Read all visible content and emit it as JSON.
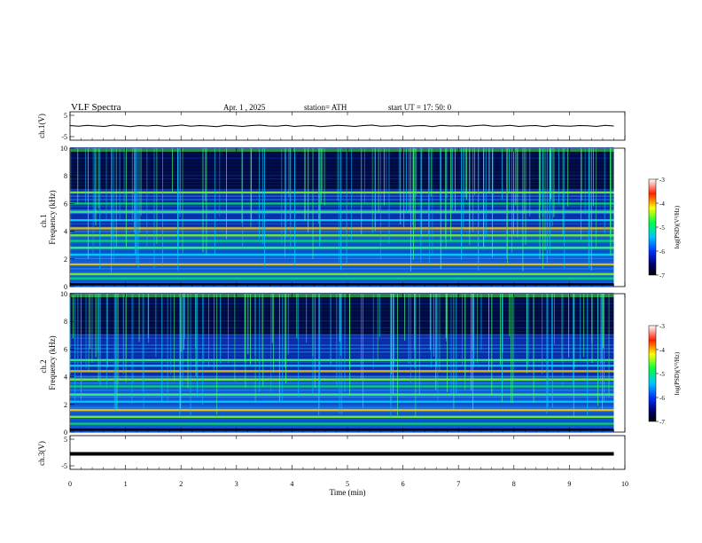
{
  "header": {
    "title": "VLF  Spectra",
    "date": "Apr. 1  , 2025",
    "station": "station= ATH",
    "start": "start  UT  =    17: 50: 0"
  },
  "chart_data": [
    {
      "type": "line",
      "ylabel": "ch.1(V)",
      "ylim": [
        -5,
        5
      ],
      "ytick_labels": [
        "5",
        "-5"
      ],
      "series": [
        {
          "values": [
            0.2,
            -0.1,
            0.3,
            0.0,
            -0.2,
            0.4,
            0.1,
            -0.3,
            0.2,
            0.0,
            0.3,
            -0.2,
            0.1,
            0.4,
            -0.1,
            0.2,
            0.0,
            -0.3,
            0.3,
            0.1,
            -0.2,
            0.2,
            0.4,
            0.0,
            -0.1,
            0.3,
            -0.2,
            0.1,
            0.2,
            -0.3,
            0.0,
            0.3,
            0.1,
            -0.2,
            0.2,
            0.4,
            -0.1,
            0.0,
            0.3,
            -0.2,
            0.1,
            0.2,
            -0.3,
            0.3,
            0.0,
            0.1,
            -0.2,
            0.2,
            0.4,
            -0.1,
            0.0,
            0.3,
            -0.2,
            0.1,
            0.2,
            -0.3,
            0.3,
            0.0,
            -0.1,
            0.2,
            0.1,
            -0.2,
            0.3,
            0.0
          ]
        }
      ],
      "x_range_min": [
        0,
        9.8
      ]
    },
    {
      "type": "heatmap",
      "ylabel": "ch.1\nFrequency  (kHz)",
      "ylim": [
        0,
        10
      ],
      "ytick_labels": [
        "0",
        "2",
        "4",
        "6",
        "8",
        "10"
      ],
      "colorbar_label": "log(PSD)(V²/Hz)",
      "colorbar_ticks": [
        "-3",
        "-4",
        "-5",
        "-6",
        "-7"
      ],
      "colorbar_range": [
        -7,
        -3
      ],
      "bands_khz": [
        0.6,
        0.9,
        1.6,
        2.3,
        2.8,
        3.3,
        3.7,
        4.2,
        4.8,
        5.4,
        6.0,
        6.8
      ],
      "x_range_min": [
        0,
        9.8
      ]
    },
    {
      "type": "heatmap",
      "ylabel": "ch.2\nFrequency  (kHz)",
      "ylim": [
        0,
        10
      ],
      "ytick_labels": [
        "0",
        "2",
        "4",
        "6",
        "8",
        "10"
      ],
      "colorbar_label": "log(PSD)(V²/Hz)",
      "colorbar_ticks": [
        "-3",
        "-4",
        "-5",
        "-6",
        "-7"
      ],
      "colorbar_range": [
        -7,
        -3
      ],
      "bands_khz": [
        0.6,
        1.1,
        1.6,
        2.2,
        2.7,
        3.3,
        3.8,
        4.4,
        4.8,
        5.2
      ],
      "x_range_min": [
        0,
        9.8
      ]
    },
    {
      "type": "line",
      "ylabel": "ch.3(V)",
      "ylim": [
        -5,
        5
      ],
      "ytick_labels": [
        "5",
        "-5"
      ],
      "series": [
        {
          "values": [
            -0.5,
            -0.5,
            -0.5,
            -0.5,
            -0.5,
            -0.5,
            -0.5,
            -0.5,
            -0.5,
            -0.5
          ]
        }
      ],
      "xlabel": "Time  (min)",
      "xlim": [
        0,
        10
      ],
      "xtick_labels": [
        "0",
        "1",
        "2",
        "3",
        "4",
        "5",
        "6",
        "7",
        "8",
        "9",
        "10"
      ],
      "x_range_min": [
        0,
        9.8
      ]
    }
  ]
}
